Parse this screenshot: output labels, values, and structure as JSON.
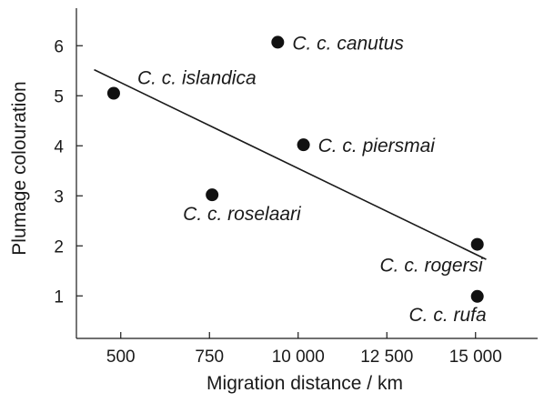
{
  "chart_data": {
    "type": "scatter",
    "title": "",
    "xlabel": "Migration distance / km",
    "ylabel": "Plumage colouration",
    "x_ticks": [
      {
        "value": 1,
        "label": "500"
      },
      {
        "value": 2,
        "label": "750"
      },
      {
        "value": 3,
        "label": "10 000"
      },
      {
        "value": 4,
        "label": "12 500"
      },
      {
        "value": 5,
        "label": "15 000"
      }
    ],
    "y_ticks": [
      {
        "value": 1,
        "label": "1"
      },
      {
        "value": 2,
        "label": "2"
      },
      {
        "value": 3,
        "label": "3"
      },
      {
        "value": 4,
        "label": "4"
      },
      {
        "value": 5,
        "label": "5"
      },
      {
        "value": 6,
        "label": "6"
      }
    ],
    "xlim": [
      0.5,
      5.7
    ],
    "ylim": [
      0.15,
      6.75
    ],
    "grid": false,
    "points": [
      {
        "label": "C. c. canutus",
        "x": 2.77,
        "y": 6.07
      },
      {
        "label": "C. c. islandica",
        "x": 0.92,
        "y": 5.05
      },
      {
        "label": "C. c. piersmai",
        "x": 3.06,
        "y": 4.02
      },
      {
        "label": "C. c. roselaari",
        "x": 2.03,
        "y": 3.02
      },
      {
        "label": "C. c. rogersi",
        "x": 5.02,
        "y": 2.03
      },
      {
        "label": "C. c. rufa",
        "x": 5.02,
        "y": 0.99
      }
    ],
    "trendline": {
      "x1": 0.7,
      "y1": 5.52,
      "x2": 5.12,
      "y2": 1.73
    }
  }
}
